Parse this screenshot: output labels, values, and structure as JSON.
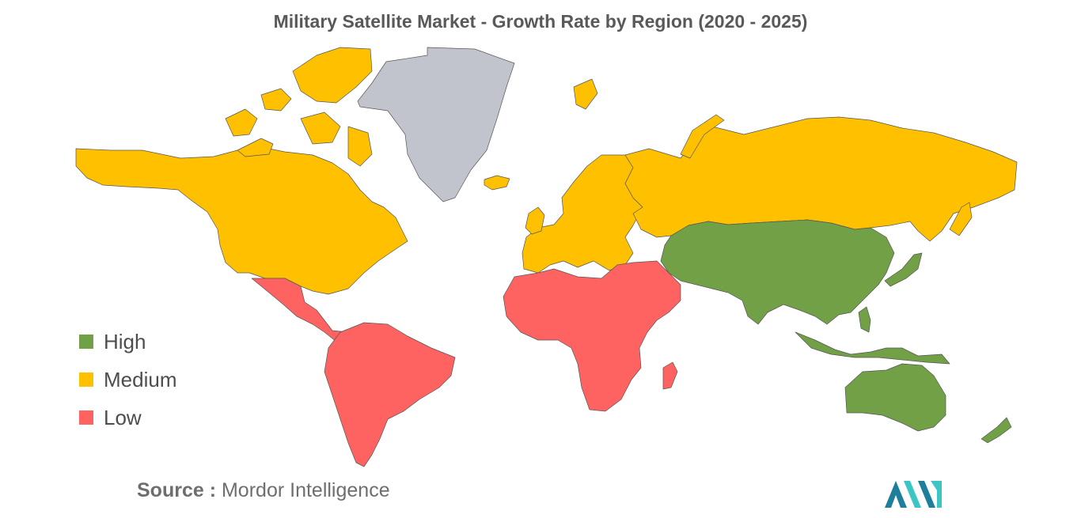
{
  "title": "Military Satellite Market - Growth Rate by Region (2020 - 2025)",
  "legend": [
    {
      "label": "High",
      "color": "#72a046"
    },
    {
      "label": "Medium",
      "color": "#ffc000"
    },
    {
      "label": "Low",
      "color": "#ff6361"
    }
  ],
  "no_data_color": "#c1c4cc",
  "source": {
    "prefix": "Source :",
    "text": "Mordor Intelligence"
  },
  "regions": [
    {
      "name": "North America",
      "level": "Medium"
    },
    {
      "name": "Europe",
      "level": "Medium"
    },
    {
      "name": "Russia",
      "level": "Medium"
    },
    {
      "name": "Asia-Pacific",
      "level": "High"
    },
    {
      "name": "Australia & New Zealand",
      "level": "High"
    },
    {
      "name": "Latin America",
      "level": "Low"
    },
    {
      "name": "Middle East & Africa",
      "level": "Low"
    }
  ]
}
